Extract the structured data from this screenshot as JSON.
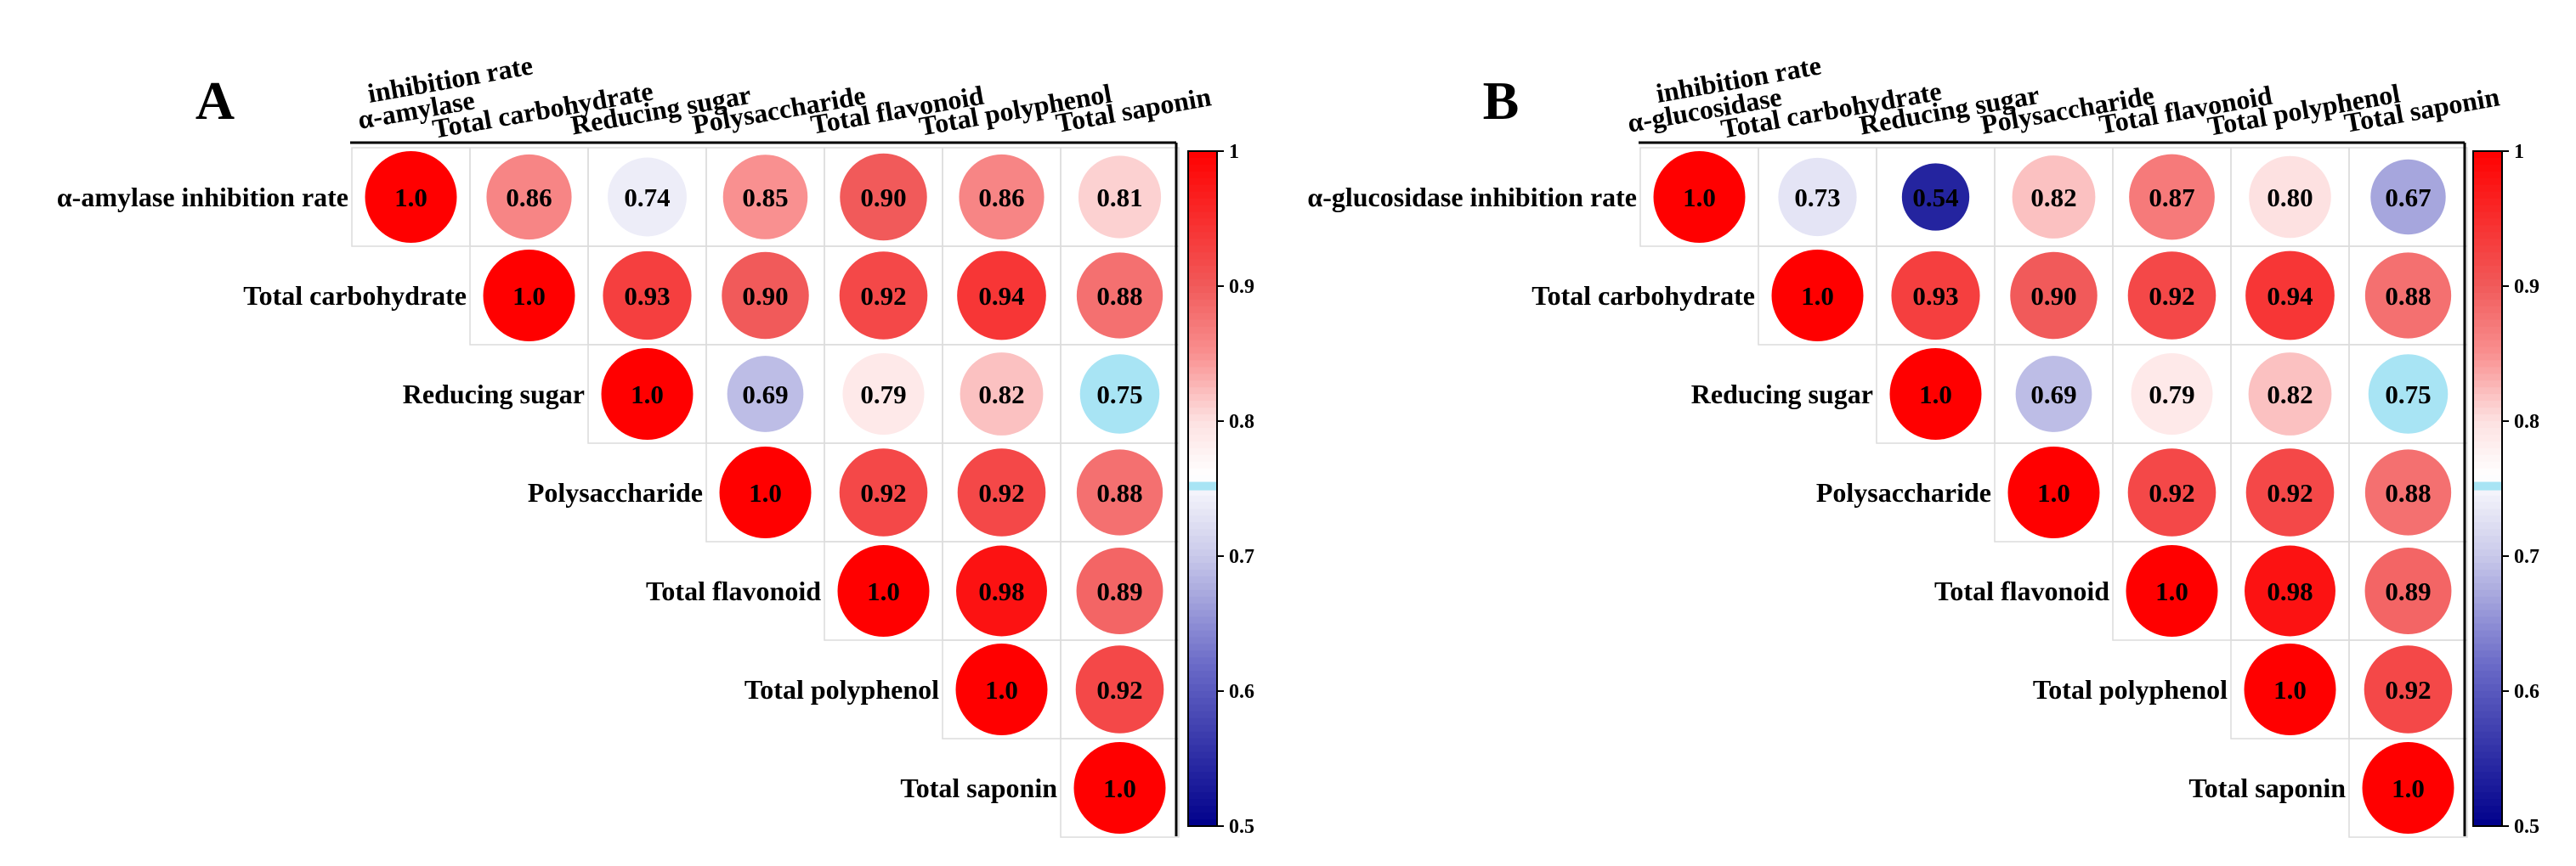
{
  "colors": {
    "stops": [
      {
        "v": 0.5,
        "c": "#00008b"
      },
      {
        "v": 0.62,
        "c": "#6b6bc8"
      },
      {
        "v": 0.7,
        "c": "#c9c9ea"
      },
      {
        "v": 0.76,
        "c": "#ffffff"
      },
      {
        "v": 0.8,
        "c": "#fde1e1"
      },
      {
        "v": 0.85,
        "c": "#f99090"
      },
      {
        "v": 0.9,
        "c": "#f15a5a"
      },
      {
        "v": 1.0,
        "c": "#ff0000"
      }
    ],
    "special_075": "#a8e4f4",
    "grid": "#dcdcdc",
    "axis": "#000000"
  },
  "colorbar_ticks": [
    "1",
    "0.9",
    "0.8",
    "0.7",
    "0.6",
    "0.5"
  ],
  "chart_data": [
    {
      "type": "heatmap",
      "panel_label": "A",
      "variables": [
        "α-amylase  inhibition rate",
        "Total carbohydrate",
        "Reducing sugar",
        "Polysaccharide",
        "Total flavonoid",
        "Total polyphenol",
        "Total saponin"
      ],
      "col_label_parts": [
        [
          "α-amylase",
          "inhibition rate"
        ],
        [
          "Total carbohydrate"
        ],
        [
          "Reducing sugar"
        ],
        [
          "Polysaccharide"
        ],
        [
          "Total flavonoid"
        ],
        [
          "Total polyphenol"
        ],
        [
          "Total saponin"
        ]
      ],
      "matrix": [
        [
          1.0,
          0.86,
          0.74,
          0.85,
          0.9,
          0.86,
          0.81
        ],
        [
          null,
          1.0,
          0.93,
          0.9,
          0.92,
          0.94,
          0.88
        ],
        [
          null,
          null,
          1.0,
          0.69,
          0.79,
          0.82,
          0.75
        ],
        [
          null,
          null,
          null,
          1.0,
          0.92,
          0.92,
          0.88
        ],
        [
          null,
          null,
          null,
          null,
          1.0,
          0.98,
          0.89
        ],
        [
          null,
          null,
          null,
          null,
          null,
          1.0,
          0.92
        ],
        [
          null,
          null,
          null,
          null,
          null,
          null,
          1.0
        ]
      ],
      "labels": [
        [
          "1.0",
          "0.86",
          "0.74",
          "0.85",
          "0.90",
          "0.86",
          "0.81"
        ],
        [
          null,
          "1.0",
          "0.93",
          "0.90",
          "0.92",
          "0.94",
          "0.88"
        ],
        [
          null,
          null,
          "1.0",
          "0.69",
          "0.79",
          "0.82",
          "0.75"
        ],
        [
          null,
          null,
          null,
          "1.0",
          "0.92",
          "0.92",
          "0.88"
        ],
        [
          null,
          null,
          null,
          null,
          "1.0",
          "0.98",
          "0.89"
        ],
        [
          null,
          null,
          null,
          null,
          null,
          "1.0",
          "0.92"
        ],
        [
          null,
          null,
          null,
          null,
          null,
          null,
          "1.0"
        ]
      ],
      "colorbar_range": [
        0.5,
        1.0
      ]
    },
    {
      "type": "heatmap",
      "panel_label": "B",
      "variables": [
        "α-glucosidase  inhibition rate",
        "Total carbohydrate",
        "Reducing sugar",
        "Polysaccharide",
        "Total flavonoid",
        "Total polyphenol",
        "Total saponin"
      ],
      "col_label_parts": [
        [
          "α-glucosidase",
          "inhibition rate"
        ],
        [
          "Total carbohydrate"
        ],
        [
          "Reducing sugar"
        ],
        [
          "Polysaccharide"
        ],
        [
          "Total flavonoid"
        ],
        [
          "Total polyphenol"
        ],
        [
          "Total saponin"
        ]
      ],
      "matrix": [
        [
          1.0,
          0.73,
          0.54,
          0.82,
          0.87,
          0.8,
          0.67
        ],
        [
          null,
          1.0,
          0.93,
          0.9,
          0.92,
          0.94,
          0.88
        ],
        [
          null,
          null,
          1.0,
          0.69,
          0.79,
          0.82,
          0.75
        ],
        [
          null,
          null,
          null,
          1.0,
          0.92,
          0.92,
          0.88
        ],
        [
          null,
          null,
          null,
          null,
          1.0,
          0.98,
          0.89
        ],
        [
          null,
          null,
          null,
          null,
          null,
          1.0,
          0.92
        ],
        [
          null,
          null,
          null,
          null,
          null,
          null,
          1.0
        ]
      ],
      "labels": [
        [
          "1.0",
          "0.73",
          "0.54",
          "0.82",
          "0.87",
          "0.80",
          "0.67"
        ],
        [
          null,
          "1.0",
          "0.93",
          "0.90",
          "0.92",
          "0.94",
          "0.88"
        ],
        [
          null,
          null,
          "1.0",
          "0.69",
          "0.79",
          "0.82",
          "0.75"
        ],
        [
          null,
          null,
          null,
          "1.0",
          "0.92",
          "0.92",
          "0.88"
        ],
        [
          null,
          null,
          null,
          null,
          "1.0",
          "0.98",
          "0.89"
        ],
        [
          null,
          null,
          null,
          null,
          null,
          "1.0",
          "0.92"
        ],
        [
          null,
          null,
          null,
          null,
          null,
          null,
          "1.0"
        ]
      ],
      "colorbar_range": [
        0.5,
        1.0
      ]
    }
  ]
}
